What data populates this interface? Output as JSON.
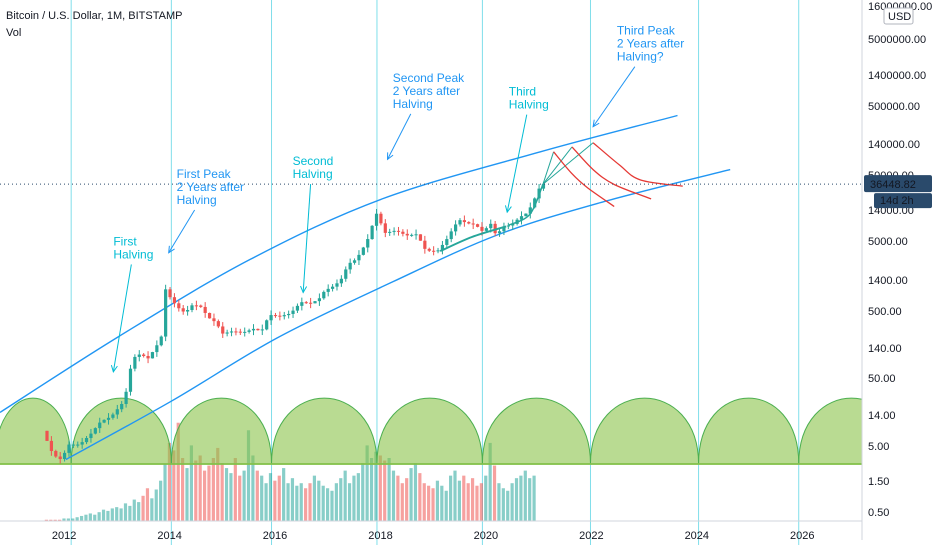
{
  "header": {
    "symbol_title": "Bitcoin / U.S. Dollar, 1M, BITSTAMP",
    "volume_label": "Vol",
    "currency": "USD"
  },
  "price_tags": {
    "current_price": "36448.82",
    "countdown": "14d 2h"
  },
  "colors": {
    "up": "#26a69a",
    "down": "#ef5350",
    "channel": "#2196f3",
    "annotation": "#2196f3",
    "halving_text": "#00bcd4",
    "cycle_fill": "#8bc34a",
    "cycle_stroke": "#4caf50",
    "peak_projection": "#e53935",
    "projection_alt": "#26a69a",
    "halving_line": "#80deea",
    "price_line_tag": "#2a4a6b"
  },
  "chart_data": {
    "type": "candlestick",
    "title": "Bitcoin / U.S. Dollar, 1M, BITSTAMP",
    "scale": "log",
    "y_axis_ticks": [
      "16000000.00",
      "5000000.00",
      "1400000.00",
      "500000.00",
      "140000.00",
      "50000.00",
      "14000.00",
      "5000.00",
      "1400.00",
      "500.00",
      "140.00",
      "50.00",
      "14.00",
      "5.00",
      "1.50",
      "0.50"
    ],
    "x_axis_ticks": [
      "2012",
      "2014",
      "2016",
      "2018",
      "2020",
      "2022",
      "2024",
      "2026"
    ],
    "xlim": [
      2010.75,
      2027.1
    ],
    "halving_dates": [
      2012.9,
      2016.5,
      2020.37
    ],
    "cycle_vertical_lines": [
      2012.1,
      2014.0,
      2015.9,
      2017.9,
      2019.9,
      2021.95,
      2024.0,
      2025.9
    ],
    "price_path": [
      [
        2011.6,
        8
      ],
      [
        2011.8,
        3.5
      ],
      [
        2011.95,
        3
      ],
      [
        2012.1,
        5
      ],
      [
        2012.3,
        5
      ],
      [
        2012.5,
        7
      ],
      [
        2012.7,
        11
      ],
      [
        2012.9,
        13
      ],
      [
        2013.1,
        20
      ],
      [
        2013.2,
        33
      ],
      [
        2013.3,
        95
      ],
      [
        2013.45,
        110
      ],
      [
        2013.6,
        95
      ],
      [
        2013.75,
        140
      ],
      [
        2013.85,
        200
      ],
      [
        2013.92,
        1050
      ],
      [
        2014.0,
        800
      ],
      [
        2014.15,
        550
      ],
      [
        2014.3,
        450
      ],
      [
        2014.45,
        600
      ],
      [
        2014.6,
        550
      ],
      [
        2014.75,
        380
      ],
      [
        2014.9,
        320
      ],
      [
        2015.0,
        220
      ],
      [
        2015.2,
        240
      ],
      [
        2015.4,
        230
      ],
      [
        2015.6,
        260
      ],
      [
        2015.75,
        240
      ],
      [
        2015.9,
        420
      ],
      [
        2016.1,
        400
      ],
      [
        2016.3,
        440
      ],
      [
        2016.5,
        650
      ],
      [
        2016.7,
        620
      ],
      [
        2016.85,
        740
      ],
      [
        2016.95,
        960
      ],
      [
        2017.1,
        1100
      ],
      [
        2017.25,
        1350
      ],
      [
        2017.4,
        2400
      ],
      [
        2017.55,
        2800
      ],
      [
        2017.7,
        4400
      ],
      [
        2017.8,
        6300
      ],
      [
        2017.92,
        14000
      ],
      [
        2018.0,
        10200
      ],
      [
        2018.1,
        6900
      ],
      [
        2018.3,
        7500
      ],
      [
        2018.5,
        6300
      ],
      [
        2018.7,
        6600
      ],
      [
        2018.85,
        4000
      ],
      [
        2018.95,
        3700
      ],
      [
        2019.1,
        3800
      ],
      [
        2019.25,
        5300
      ],
      [
        2019.4,
        8500
      ],
      [
        2019.5,
        10800
      ],
      [
        2019.65,
        9600
      ],
      [
        2019.8,
        9200
      ],
      [
        2019.95,
        7200
      ],
      [
        2020.1,
        9400
      ],
      [
        2020.2,
        6400
      ],
      [
        2020.35,
        8600
      ],
      [
        2020.5,
        9100
      ],
      [
        2020.65,
        11800
      ],
      [
        2020.8,
        13800
      ],
      [
        2020.9,
        19700
      ],
      [
        2021.0,
        29000
      ],
      [
        2021.05,
        36448.82
      ]
    ],
    "volume_heights": [
      0.01,
      0.01,
      0.01,
      0.01,
      0.02,
      0.02,
      0.02,
      0.03,
      0.04,
      0.05,
      0.06,
      0.05,
      0.07,
      0.09,
      0.08,
      0.1,
      0.11,
      0.1,
      0.14,
      0.12,
      0.17,
      0.15,
      0.2,
      0.26,
      0.18,
      0.25,
      0.32,
      0.45,
      0.62,
      0.56,
      0.78,
      0.5,
      0.42,
      0.6,
      0.48,
      0.52,
      0.4,
      0.44,
      0.5,
      0.58,
      0.46,
      0.42,
      0.38,
      0.5,
      0.36,
      0.4,
      0.72,
      0.52,
      0.4,
      0.36,
      0.3,
      0.38,
      0.32,
      0.36,
      0.42,
      0.3,
      0.34,
      0.28,
      0.3,
      0.26,
      0.3,
      0.36,
      0.32,
      0.28,
      0.26,
      0.24,
      0.3,
      0.34,
      0.4,
      0.3,
      0.36,
      0.38,
      0.46,
      0.6,
      0.5,
      0.55,
      0.52,
      0.48,
      0.5,
      0.4,
      0.36,
      0.3,
      0.34,
      0.42,
      0.46,
      0.38,
      0.3,
      0.28,
      0.26,
      0.32,
      0.28,
      0.24,
      0.36,
      0.4,
      0.32,
      0.36,
      0.3,
      0.34,
      0.28,
      0.3,
      0.36,
      0.62,
      0.44,
      0.3,
      0.26,
      0.24,
      0.3,
      0.34,
      0.36,
      0.4,
      0.34,
      0.36
    ],
    "channel": {
      "upper": [
        [
          2010.75,
          15
        ],
        [
          2013.0,
          200
        ],
        [
          2015.5,
          2800
        ],
        [
          2018.0,
          22000
        ],
        [
          2021.0,
          110000
        ],
        [
          2023.6,
          380000
        ]
      ],
      "lower": [
        [
          2012.0,
          3
        ],
        [
          2014.0,
          22
        ],
        [
          2016.0,
          190
        ],
        [
          2018.2,
          1300
        ],
        [
          2020.2,
          6500
        ],
        [
          2022.2,
          20000
        ],
        [
          2024.6,
          60000
        ]
      ]
    },
    "projections": {
      "rise_lines": [
        [
          [
            2021.05,
            36448.82
          ],
          [
            2021.25,
            110000
          ]
        ],
        [
          [
            2021.05,
            36448.82
          ],
          [
            2021.6,
            130000
          ]
        ],
        [
          [
            2021.05,
            36448.82
          ],
          [
            2022.0,
            150000
          ]
        ]
      ],
      "decay_curves": [
        [
          [
            2021.25,
            110000
          ],
          [
            2021.6,
            52000
          ],
          [
            2021.9,
            32000
          ],
          [
            2022.4,
            17000
          ]
        ],
        [
          [
            2021.6,
            130000
          ],
          [
            2022.0,
            60000
          ],
          [
            2022.4,
            36000
          ],
          [
            2023.1,
            22000
          ]
        ],
        [
          [
            2022.0,
            150000
          ],
          [
            2022.5,
            70000
          ],
          [
            2022.9,
            42000
          ],
          [
            2023.7,
            34000
          ]
        ]
      ]
    },
    "annotations": [
      {
        "text": [
          "First",
          "Halving"
        ],
        "x": 2012.9,
        "y": 4500,
        "arrow_to": [
          2012.9,
          60
        ],
        "color": "halving_text"
      },
      {
        "text": [
          "First Peak",
          "2 Years after",
          "Halving"
        ],
        "x": 2014.1,
        "y": 45000,
        "arrow_to": [
          2013.95,
          3500
        ],
        "color": "annotation"
      },
      {
        "text": [
          "Second",
          "Halving"
        ],
        "x": 2016.3,
        "y": 70000,
        "arrow_to": [
          2016.5,
          900
        ],
        "color": "halving_text"
      },
      {
        "text": [
          "Second Peak",
          "2 Years after",
          "Halving"
        ],
        "x": 2018.2,
        "y": 1200000,
        "arrow_to": [
          2018.1,
          85000
        ],
        "color": "annotation"
      },
      {
        "text": [
          "Third",
          "Halving"
        ],
        "x": 2020.4,
        "y": 750000,
        "arrow_to": [
          2020.37,
          14000
        ],
        "color": "halving_text"
      },
      {
        "text": [
          "Third Peak",
          "2 Years after",
          "Halving?"
        ],
        "x": 2022.45,
        "y": 6000000,
        "arrow_to": [
          2022.0,
          260000
        ],
        "color": "annotation"
      }
    ]
  }
}
